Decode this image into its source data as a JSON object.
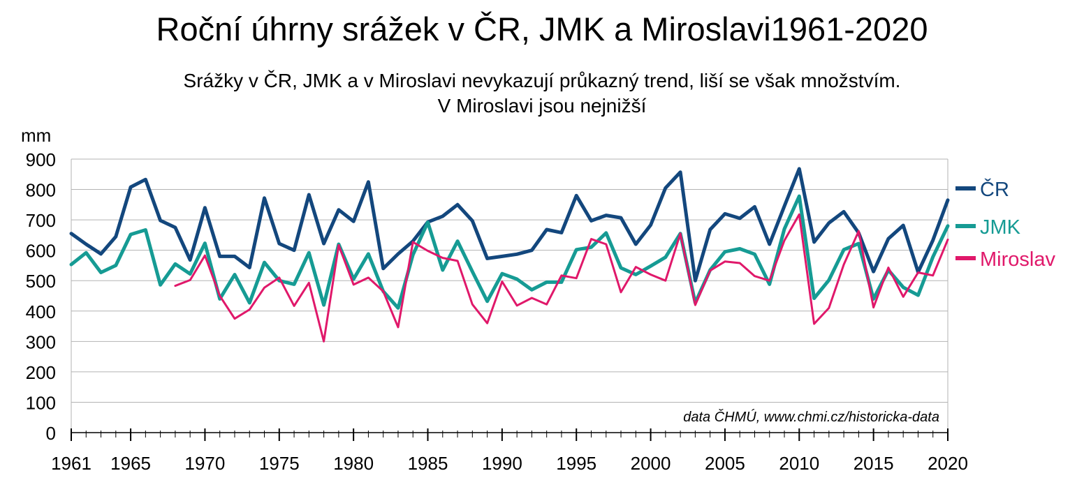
{
  "chart_data": {
    "type": "line",
    "title": "Roční úhrny srážek v ČR, JMK  a Miroslavi1961-2020",
    "subtitle_lines": [
      "Srážky v ČR, JMK a v Miroslavi nevykazují průkazný trend, liší se však množstvím.",
      "V Miroslavi jsou nejnižší"
    ],
    "ylabel": "mm",
    "xlabel": "",
    "annotation": "data ČHMÚ, www.chmi.cz/historicka-data",
    "ylim": [
      0,
      900
    ],
    "y_ticks": [
      "0",
      "100",
      "200",
      "300",
      "400",
      "500",
      "600",
      "700",
      "800",
      "900"
    ],
    "xlim": [
      1961,
      2020
    ],
    "x_ticks": [
      "1961",
      "1965",
      "1970",
      "1975",
      "1980",
      "1985",
      "1990",
      "1995",
      "2000",
      "2005",
      "2010",
      "2015",
      "2020"
    ],
    "grid": true,
    "legend_position": "right",
    "x": [
      1961,
      1962,
      1963,
      1964,
      1965,
      1966,
      1967,
      1968,
      1969,
      1970,
      1971,
      1972,
      1973,
      1974,
      1975,
      1976,
      1977,
      1978,
      1979,
      1980,
      1981,
      1982,
      1983,
      1984,
      1985,
      1986,
      1987,
      1988,
      1989,
      1990,
      1991,
      1992,
      1993,
      1994,
      1995,
      1996,
      1997,
      1998,
      1999,
      2000,
      2001,
      2002,
      2003,
      2004,
      2005,
      2006,
      2007,
      2008,
      2009,
      2010,
      2011,
      2012,
      2013,
      2014,
      2015,
      2016,
      2017,
      2018,
      2019,
      2020
    ],
    "series": [
      {
        "name": "ČR",
        "color": "#13477d",
        "width": 5,
        "values": [
          655,
          620,
          588,
          645,
          808,
          833,
          698,
          675,
          568,
          740,
          580,
          580,
          543,
          772,
          622,
          600,
          783,
          622,
          733,
          695,
          825,
          540,
          588,
          630,
          693,
          712,
          750,
          697,
          573,
          580,
          587,
          600,
          668,
          658,
          780,
          697,
          715,
          707,
          620,
          683,
          805,
          857,
          500,
          668,
          720,
          705,
          743,
          620,
          745,
          868,
          627,
          690,
          727,
          657,
          530,
          638,
          682,
          528,
          633,
          765
        ]
      },
      {
        "name": "JMK",
        "color": "#169b94",
        "width": 5,
        "values": [
          553,
          592,
          527,
          550,
          652,
          667,
          486,
          555,
          522,
          623,
          440,
          520,
          427,
          560,
          500,
          488,
          592,
          420,
          620,
          505,
          588,
          465,
          410,
          585,
          692,
          535,
          630,
          530,
          432,
          523,
          505,
          470,
          495,
          495,
          602,
          610,
          657,
          542,
          520,
          548,
          577,
          655,
          427,
          535,
          595,
          605,
          587,
          488,
          670,
          778,
          442,
          502,
          602,
          622,
          440,
          535,
          478,
          452,
          578,
          680
        ]
      },
      {
        "name": "Miroslav",
        "color": "#e0186a",
        "width": 3,
        "values": [
          null,
          null,
          null,
          null,
          null,
          null,
          null,
          483,
          502,
          583,
          450,
          375,
          405,
          477,
          510,
          417,
          493,
          300,
          617,
          487,
          510,
          465,
          347,
          627,
          598,
          575,
          565,
          422,
          360,
          497,
          418,
          443,
          422,
          517,
          508,
          637,
          620,
          462,
          545,
          520,
          500,
          655,
          420,
          533,
          563,
          558,
          515,
          500,
          632,
          718,
          358,
          410,
          553,
          663,
          412,
          543,
          447,
          527,
          517,
          635
        ]
      }
    ]
  }
}
